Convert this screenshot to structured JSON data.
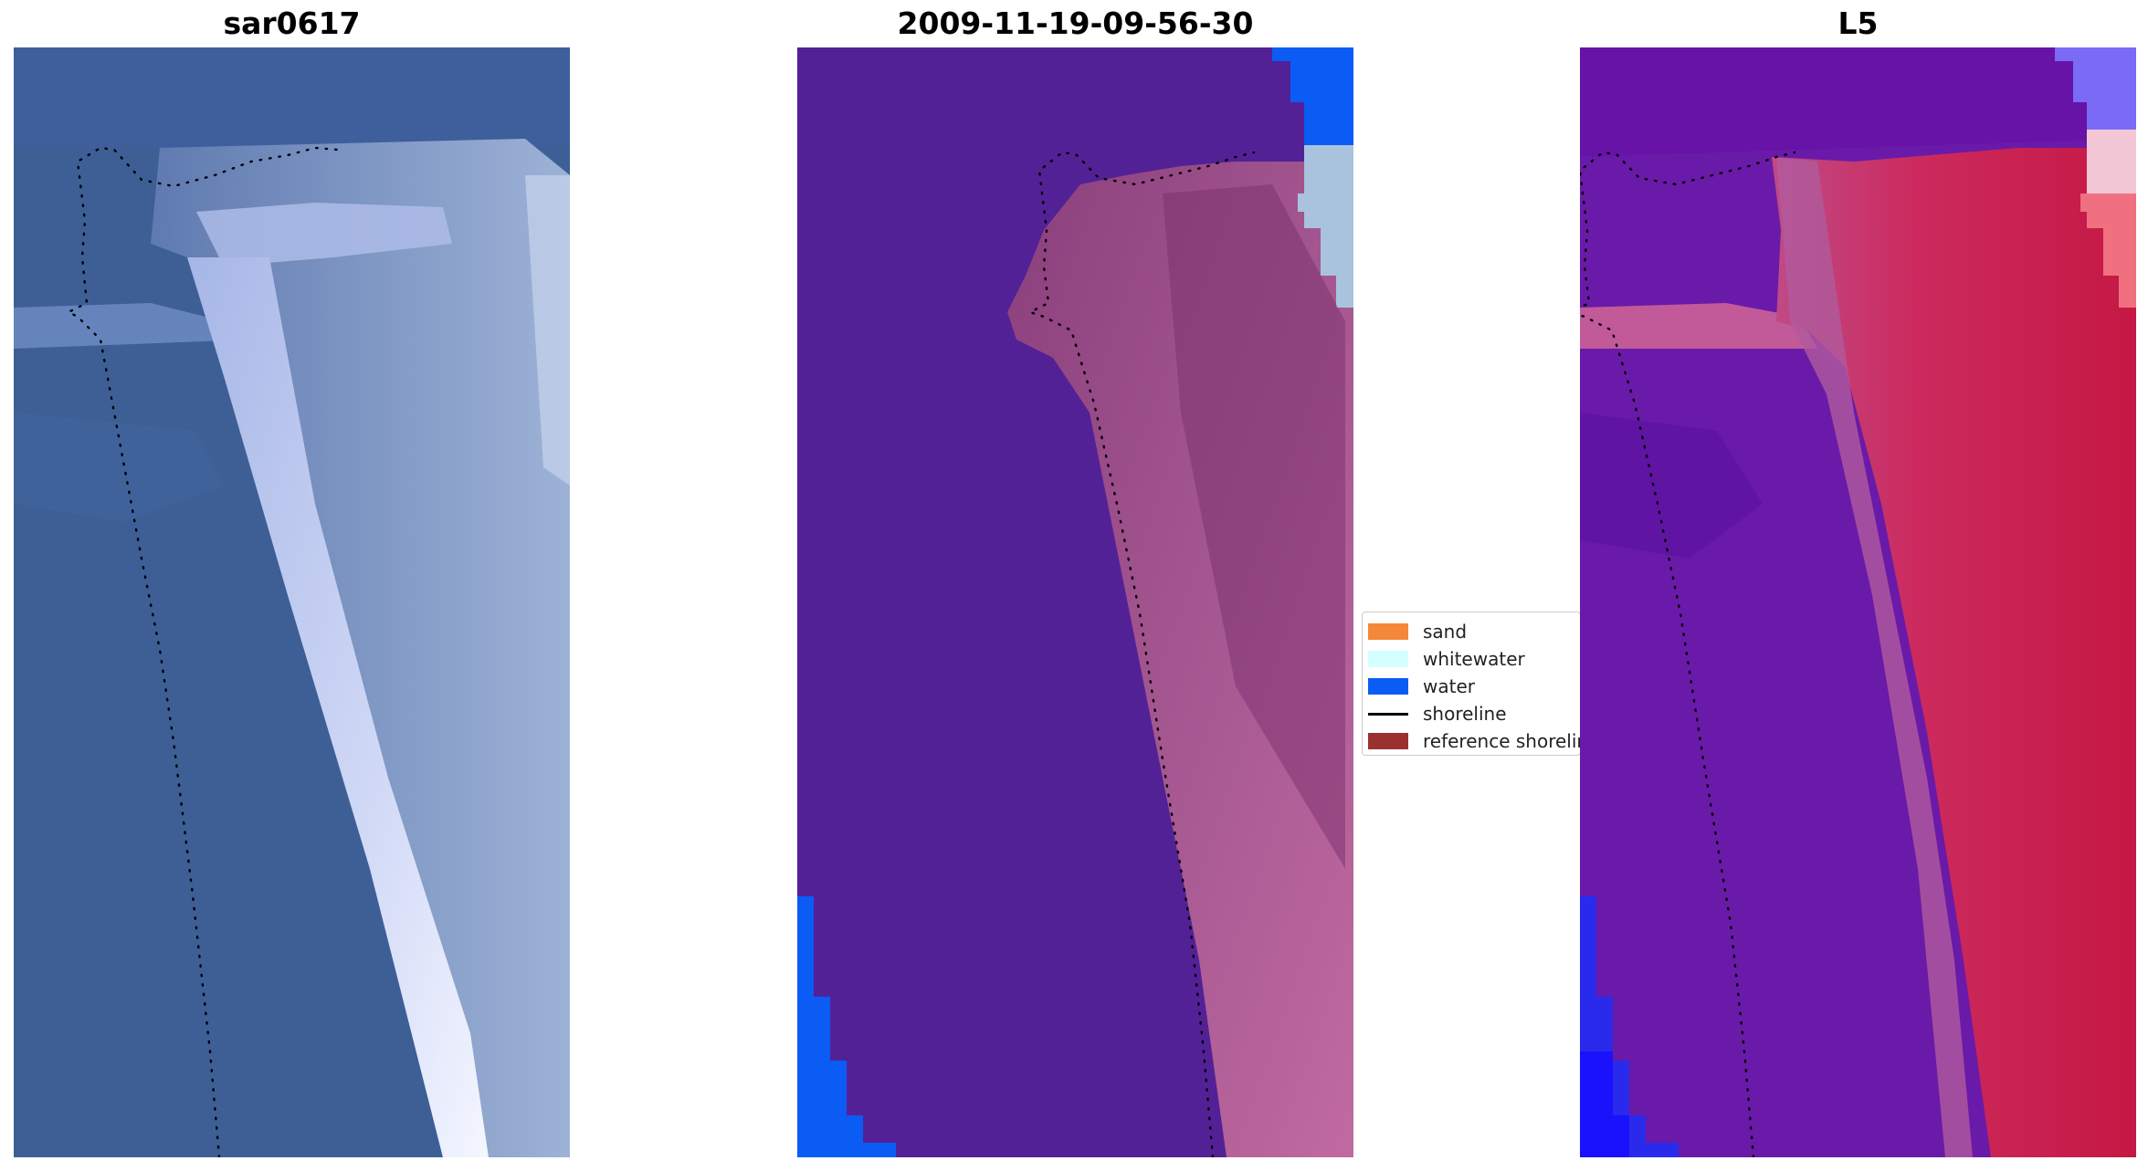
{
  "panels": [
    {
      "title": "sar0617",
      "kind": "rgb-image"
    },
    {
      "title": "2009-11-19-09-56-30",
      "kind": "classified-image"
    },
    {
      "title": "L5",
      "kind": "index-image"
    }
  ],
  "legend": {
    "items": [
      {
        "label": "sand",
        "color": "#f5873a",
        "type": "patch"
      },
      {
        "label": "whitewater",
        "color": "#d4ffff",
        "type": "patch"
      },
      {
        "label": "water",
        "color": "#0a5cf5",
        "type": "patch"
      },
      {
        "label": "shoreline",
        "color": "#000000",
        "type": "line"
      },
      {
        "label": "reference shoreline",
        "color": "#9a3030",
        "type": "patch"
      }
    ]
  },
  "colors": {
    "rgb_sea": "#3d5f96",
    "rgb_beach_light": "#c8d2f0",
    "class_background": "#532196",
    "class_water": "#0a5cf5",
    "class_whitewater": "#a9c3df",
    "class_sand_overlay": "#9a4a84",
    "index_low": "#6a1aa8",
    "index_high": "#c51844",
    "index_water": "#1a22f0",
    "index_white": "#f4d0e0",
    "shoreline_marker": "#000000"
  }
}
